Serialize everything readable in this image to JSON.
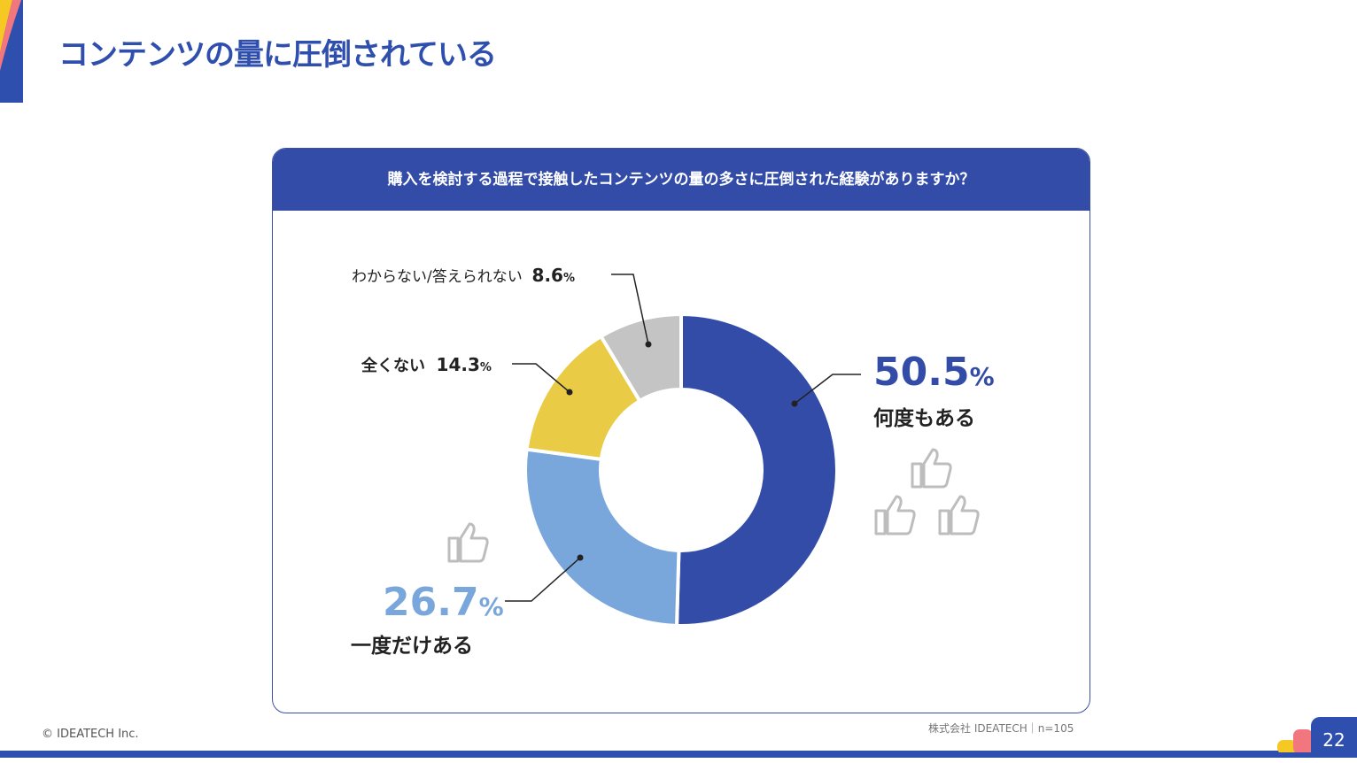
{
  "title": "コンテンツの量に圧倒されている",
  "footer": {
    "copyright": "© IDEATECH Inc.",
    "source": "株式会社 IDEATECH｜n=105",
    "page": "22"
  },
  "colors": {
    "accent": "#334CA8",
    "light_blue": "#79A7DC",
    "yellow": "#EACB45",
    "gray": "#C4C4C4"
  },
  "chart_data": {
    "type": "pie",
    "title": "購入を検討する過程で接触したコンテンツの量の多さに圧倒された経験がありますか？",
    "categories": [
      "何度もある",
      "一度だけある",
      "全くない",
      "わからない/答えられない"
    ],
    "values": [
      50.5,
      26.7,
      14.3,
      8.6
    ],
    "value_labels": [
      "50.5",
      "26.7",
      "14.3",
      "8.6"
    ],
    "unit": "%",
    "colors": [
      "#334CA8",
      "#79A7DC",
      "#EACB45",
      "#C4C4C4"
    ]
  }
}
